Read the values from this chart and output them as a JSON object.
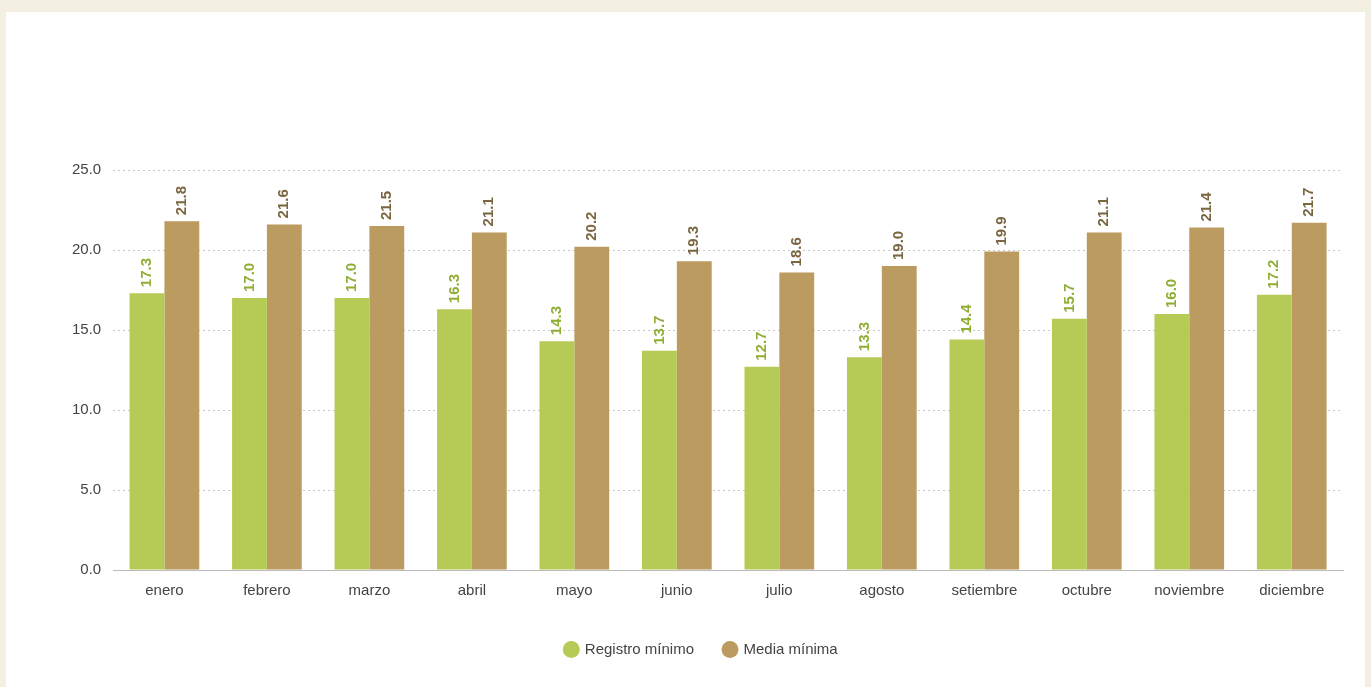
{
  "chart_data": {
    "type": "bar",
    "categories": [
      "enero",
      "febrero",
      "marzo",
      "abril",
      "mayo",
      "junio",
      "julio",
      "agosto",
      "setiembre",
      "octubre",
      "noviembre",
      "diciembre"
    ],
    "series": [
      {
        "name": "Registro mínimo",
        "color": "#b5cb55",
        "values": [
          17.3,
          17.0,
          17.0,
          16.3,
          14.3,
          13.7,
          12.7,
          13.3,
          14.4,
          15.7,
          16.0,
          17.2
        ],
        "value_labels": [
          "17.3",
          "17.0",
          "17.0",
          "16.3",
          "14.3",
          "13.7",
          "12.7",
          "13.3",
          "14.4",
          "15.7",
          "16.0",
          "17.2"
        ]
      },
      {
        "name": "Media mínima",
        "color": "#bb9b5f",
        "values": [
          21.8,
          21.6,
          21.5,
          21.1,
          20.2,
          19.3,
          18.6,
          19.0,
          19.9,
          21.1,
          21.4,
          21.7
        ],
        "value_labels": [
          "21.8",
          "21.6",
          "21.5",
          "21.1",
          "20.2",
          "19.3",
          "18.6",
          "19.0",
          "19.9",
          "21.1",
          "21.4",
          "21.7"
        ]
      }
    ],
    "ylim": [
      0,
      25
    ],
    "yticks": [
      {
        "value": 0,
        "label": "0.0"
      },
      {
        "value": 5,
        "label": "5.0"
      },
      {
        "value": 10,
        "label": "10.0"
      },
      {
        "value": 15,
        "label": "15.0"
      },
      {
        "value": 20,
        "label": "20.0"
      },
      {
        "value": 25,
        "label": "25.0"
      }
    ],
    "grid": "y",
    "legend": "bottom"
  }
}
